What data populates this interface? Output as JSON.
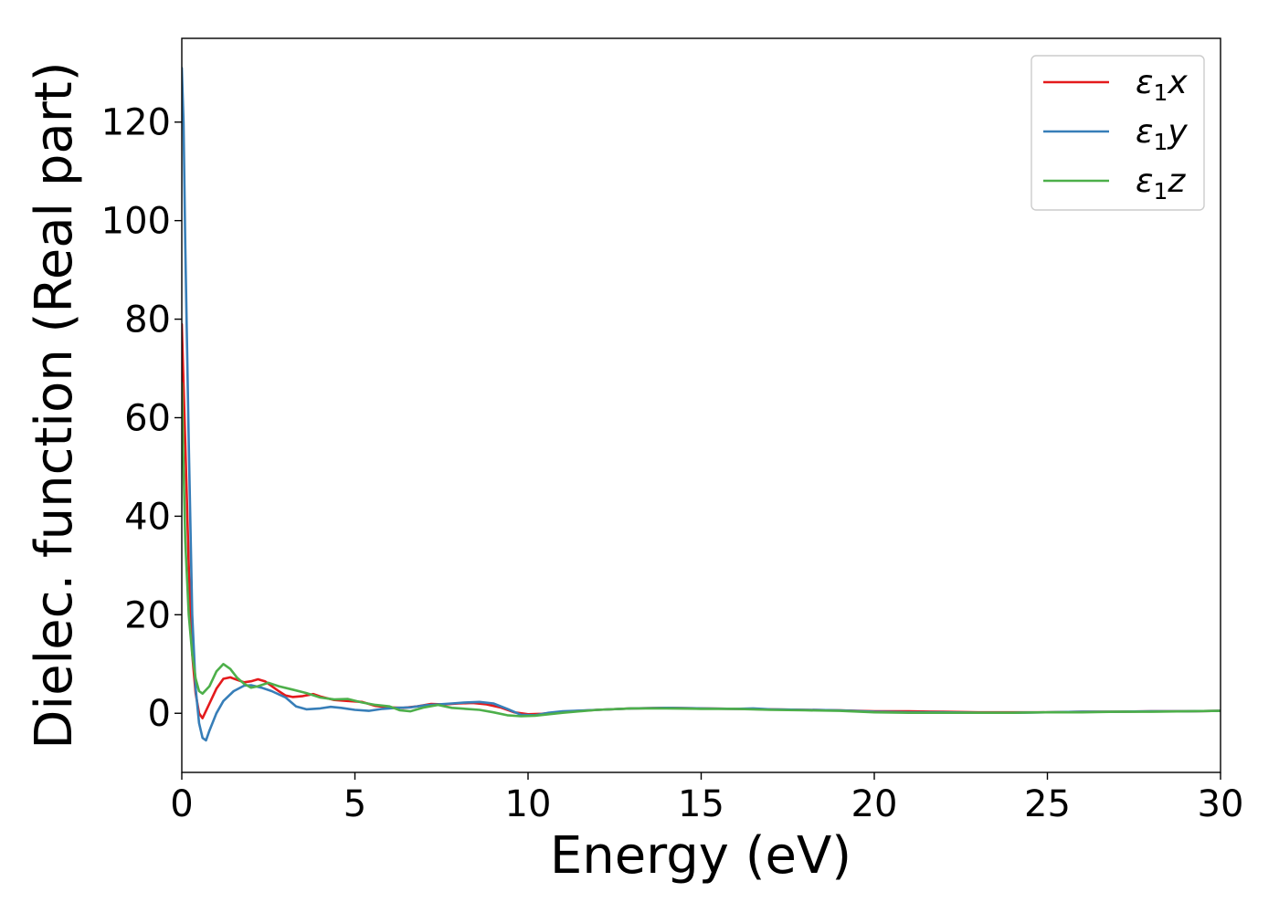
{
  "chart_data": {
    "type": "line",
    "title": "",
    "xlabel": "Energy (eV)",
    "ylabel": "Dielec. function (Real part)",
    "xlim": [
      0,
      30
    ],
    "ylim": [
      -12,
      137
    ],
    "xticks": [
      0,
      5,
      10,
      15,
      20,
      25,
      30
    ],
    "yticks": [
      0,
      20,
      40,
      60,
      80,
      100,
      120
    ],
    "grid": false,
    "legend_position": "top-right",
    "series": [
      {
        "name": "ε1x",
        "legend_base": "ε",
        "legend_sub": "1",
        "legend_suffix": "x",
        "color": "#e41a1c",
        "points": [
          [
            0,
            79
          ],
          [
            0.1,
            55
          ],
          [
            0.2,
            30
          ],
          [
            0.3,
            12
          ],
          [
            0.4,
            4
          ],
          [
            0.5,
            0
          ],
          [
            0.6,
            -1
          ],
          [
            0.8,
            2
          ],
          [
            1.0,
            5
          ],
          [
            1.2,
            7
          ],
          [
            1.4,
            7.3
          ],
          [
            1.6,
            6.8
          ],
          [
            1.8,
            6.3
          ],
          [
            2.0,
            6.5
          ],
          [
            2.2,
            6.9
          ],
          [
            2.4,
            6.5
          ],
          [
            2.6,
            5.5
          ],
          [
            2.8,
            4.5
          ],
          [
            3.0,
            3.6
          ],
          [
            3.2,
            3.3
          ],
          [
            3.5,
            3.5
          ],
          [
            3.8,
            3.9
          ],
          [
            4.0,
            3.4
          ],
          [
            4.4,
            2.7
          ],
          [
            4.8,
            2.5
          ],
          [
            5.2,
            2.3
          ],
          [
            5.6,
            1.5
          ],
          [
            6.0,
            1.2
          ],
          [
            6.4,
            1.1
          ],
          [
            6.8,
            1.4
          ],
          [
            7.2,
            1.9
          ],
          [
            7.6,
            1.8
          ],
          [
            8.0,
            2.0
          ],
          [
            8.4,
            2.1
          ],
          [
            8.8,
            1.8
          ],
          [
            9.2,
            1.2
          ],
          [
            9.6,
            0.2
          ],
          [
            10.0,
            -0.2
          ],
          [
            10.4,
            -0.1
          ],
          [
            11.0,
            0.3
          ],
          [
            12.0,
            0.7
          ],
          [
            13.0,
            1.0
          ],
          [
            14.0,
            1.1
          ],
          [
            15.0,
            1.0
          ],
          [
            16.0,
            0.9
          ],
          [
            17.0,
            0.8
          ],
          [
            18.0,
            0.7
          ],
          [
            19.0,
            0.6
          ],
          [
            20.0,
            0.4
          ],
          [
            21.0,
            0.4
          ],
          [
            22.0,
            0.3
          ],
          [
            23.0,
            0.2
          ],
          [
            24.0,
            0.2
          ],
          [
            25.0,
            0.2
          ],
          [
            26.0,
            0.3
          ],
          [
            27.0,
            0.3
          ],
          [
            28.0,
            0.4
          ],
          [
            29.0,
            0.4
          ],
          [
            30.0,
            0.5
          ]
        ]
      },
      {
        "name": "ε1y",
        "legend_base": "ε",
        "legend_sub": "1",
        "legend_suffix": "y",
        "color": "#377eb8",
        "points": [
          [
            0,
            131
          ],
          [
            0.05,
            120
          ],
          [
            0.1,
            95
          ],
          [
            0.2,
            55
          ],
          [
            0.3,
            20
          ],
          [
            0.4,
            5
          ],
          [
            0.5,
            -2
          ],
          [
            0.6,
            -5
          ],
          [
            0.7,
            -5.5
          ],
          [
            0.8,
            -3.5
          ],
          [
            1.0,
            0
          ],
          [
            1.2,
            2.5
          ],
          [
            1.5,
            4.5
          ],
          [
            1.8,
            5.6
          ],
          [
            2.0,
            5.7
          ],
          [
            2.3,
            5.2
          ],
          [
            2.6,
            4.5
          ],
          [
            3.0,
            3.2
          ],
          [
            3.3,
            1.4
          ],
          [
            3.6,
            0.8
          ],
          [
            4.0,
            1.0
          ],
          [
            4.3,
            1.3
          ],
          [
            4.6,
            1.1
          ],
          [
            5.0,
            0.7
          ],
          [
            5.4,
            0.5
          ],
          [
            5.8,
            0.9
          ],
          [
            6.2,
            1.1
          ],
          [
            6.6,
            1.2
          ],
          [
            7.0,
            1.6
          ],
          [
            7.4,
            1.8
          ],
          [
            7.8,
            2.0
          ],
          [
            8.2,
            2.2
          ],
          [
            8.6,
            2.3
          ],
          [
            9.0,
            2.0
          ],
          [
            9.4,
            0.9
          ],
          [
            9.8,
            -0.3
          ],
          [
            10.2,
            -0.4
          ],
          [
            10.6,
            0.1
          ],
          [
            11.0,
            0.4
          ],
          [
            12.0,
            0.7
          ],
          [
            13.0,
            1.0
          ],
          [
            14.0,
            1.1
          ],
          [
            15.0,
            1.0
          ],
          [
            16.0,
            0.9
          ],
          [
            16.5,
            1.0
          ],
          [
            17.0,
            0.8
          ],
          [
            18.0,
            0.7
          ],
          [
            19.0,
            0.6
          ],
          [
            20.0,
            0.3
          ],
          [
            21.0,
            0.2
          ],
          [
            22.0,
            0.2
          ],
          [
            23.0,
            0.1
          ],
          [
            24.0,
            0.1
          ],
          [
            25.0,
            0.2
          ],
          [
            26.0,
            0.3
          ],
          [
            27.0,
            0.3
          ],
          [
            28.0,
            0.4
          ],
          [
            29.0,
            0.4
          ],
          [
            30.0,
            0.5
          ]
        ]
      },
      {
        "name": "ε1z",
        "legend_base": "ε",
        "legend_sub": "1",
        "legend_suffix": "z",
        "color": "#4daf4a",
        "points": [
          [
            0,
            67
          ],
          [
            0.05,
            50
          ],
          [
            0.1,
            35
          ],
          [
            0.2,
            20
          ],
          [
            0.3,
            12
          ],
          [
            0.4,
            7
          ],
          [
            0.5,
            4.5
          ],
          [
            0.6,
            4
          ],
          [
            0.8,
            5.5
          ],
          [
            1.0,
            8.5
          ],
          [
            1.2,
            10
          ],
          [
            1.4,
            9
          ],
          [
            1.6,
            7.2
          ],
          [
            1.8,
            6
          ],
          [
            2.0,
            5.2
          ],
          [
            2.2,
            5.5
          ],
          [
            2.5,
            6.2
          ],
          [
            2.8,
            5.5
          ],
          [
            3.2,
            4.8
          ],
          [
            3.6,
            4.1
          ],
          [
            4.0,
            3.2
          ],
          [
            4.4,
            2.8
          ],
          [
            4.8,
            2.9
          ],
          [
            5.2,
            2.2
          ],
          [
            5.6,
            1.7
          ],
          [
            6.0,
            1.4
          ],
          [
            6.3,
            0.6
          ],
          [
            6.6,
            0.4
          ],
          [
            7.0,
            1.2
          ],
          [
            7.4,
            1.7
          ],
          [
            7.8,
            1.1
          ],
          [
            8.2,
            0.9
          ],
          [
            8.6,
            0.7
          ],
          [
            9.0,
            0.2
          ],
          [
            9.4,
            -0.4
          ],
          [
            9.8,
            -0.6
          ],
          [
            10.2,
            -0.5
          ],
          [
            10.6,
            -0.2
          ],
          [
            11.0,
            0.1
          ],
          [
            12.0,
            0.7
          ],
          [
            13.0,
            1.0
          ],
          [
            14.0,
            1.0
          ],
          [
            15.0,
            0.9
          ],
          [
            16.0,
            0.9
          ],
          [
            17.0,
            0.7
          ],
          [
            18.0,
            0.6
          ],
          [
            19.0,
            0.5
          ],
          [
            20.0,
            0.2
          ],
          [
            21.0,
            0.1
          ],
          [
            22.0,
            0.1
          ],
          [
            23.0,
            0.1
          ],
          [
            24.0,
            0.1
          ],
          [
            25.0,
            0.2
          ],
          [
            26.0,
            0.2
          ],
          [
            27.0,
            0.3
          ],
          [
            28.0,
            0.3
          ],
          [
            29.0,
            0.4
          ],
          [
            30.0,
            0.5
          ]
        ]
      }
    ]
  }
}
